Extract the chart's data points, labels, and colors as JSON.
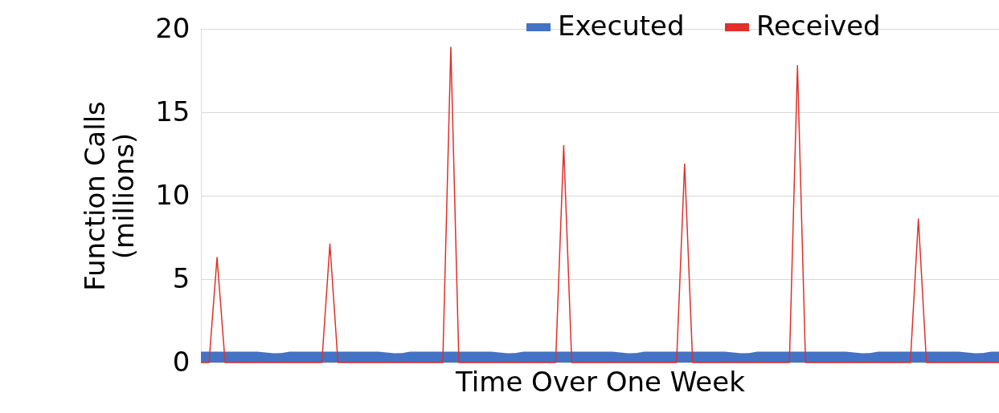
{
  "chart_data": {
    "type": "line",
    "xlabel": "Time Over One Week",
    "ylabel": "Function Calls (millions)",
    "categories": [
      null,
      null,
      null,
      null,
      null,
      null,
      null,
      null,
      null,
      null,
      null,
      null,
      null,
      null,
      null,
      null,
      null,
      null,
      null,
      null,
      null,
      null,
      null,
      null,
      null,
      null,
      null,
      null,
      null,
      null,
      null,
      null,
      null,
      null,
      null,
      null,
      null,
      null,
      null,
      null,
      null,
      null,
      null,
      null,
      null,
      null,
      null,
      null,
      null,
      null,
      null,
      null,
      null,
      null,
      null,
      null,
      null,
      null,
      null,
      null,
      null,
      null,
      null,
      null,
      null,
      null,
      null,
      null,
      null,
      null,
      null,
      null,
      null,
      null,
      null,
      null,
      null,
      null,
      null,
      null,
      null,
      null,
      null,
      null,
      null,
      null,
      null,
      null,
      null,
      null,
      null,
      null,
      null,
      null,
      null,
      null,
      null,
      null,
      null,
      null
    ],
    "series": [
      {
        "name": "Executed",
        "type": "area",
        "color": "#4472c4",
        "values": [
          0.65,
          0.65,
          0.65,
          0.65,
          0.65,
          0.65,
          0.65,
          0.65,
          0.6,
          0.55,
          0.57,
          0.65,
          0.65,
          0.65,
          0.65,
          0.65,
          0.65,
          0.65,
          0.65,
          0.65,
          0.65,
          0.65,
          0.65,
          0.6,
          0.55,
          0.57,
          0.65,
          0.65,
          0.65,
          0.65,
          0.65,
          0.65,
          0.65,
          0.65,
          0.65,
          0.65,
          0.65,
          0.6,
          0.55,
          0.57,
          0.65,
          0.65,
          0.65,
          0.65,
          0.65,
          0.65,
          0.65,
          0.65,
          0.65,
          0.65,
          0.65,
          0.65,
          0.6,
          0.55,
          0.57,
          0.65,
          0.65,
          0.65,
          0.65,
          0.65,
          0.65,
          0.65,
          0.65,
          0.65,
          0.65,
          0.65,
          0.6,
          0.55,
          0.57,
          0.65,
          0.65,
          0.65,
          0.65,
          0.65,
          0.65,
          0.65,
          0.65,
          0.65,
          0.65,
          0.65,
          0.65,
          0.6,
          0.55,
          0.57,
          0.65,
          0.65,
          0.65,
          0.65,
          0.65,
          0.65,
          0.65,
          0.65,
          0.65,
          0.65,
          0.65,
          0.6,
          0.55,
          0.57,
          0.65,
          0.65
        ]
      },
      {
        "name": "Received",
        "color": "#e0302a",
        "values": [
          0,
          0,
          6.3,
          0,
          0,
          0,
          0,
          0,
          0,
          0,
          0,
          0,
          0,
          0,
          0,
          0,
          7.1,
          0,
          0,
          0,
          0,
          0,
          0,
          0,
          0,
          0,
          0,
          0,
          0,
          0,
          0,
          18.9,
          0,
          0,
          0,
          0,
          0,
          0,
          0,
          0,
          0,
          0,
          0,
          0,
          0,
          13.0,
          0,
          0,
          0,
          0,
          0,
          0,
          0,
          0,
          0,
          0,
          0,
          0,
          0,
          0,
          11.9,
          0,
          0,
          0,
          0,
          0,
          0,
          0,
          0,
          0,
          0,
          0,
          0,
          0,
          17.8,
          0,
          0,
          0,
          0,
          0,
          0,
          0,
          0,
          0,
          0,
          0,
          0,
          0,
          0,
          8.6,
          0,
          0,
          0,
          0,
          0,
          0,
          0,
          0,
          0,
          0
        ]
      }
    ],
    "ylim": [
      0,
      20
    ],
    "yticks": [
      0,
      5,
      10,
      15,
      20
    ],
    "grid": "y",
    "legend": "top right",
    "tick_labels": "y"
  }
}
